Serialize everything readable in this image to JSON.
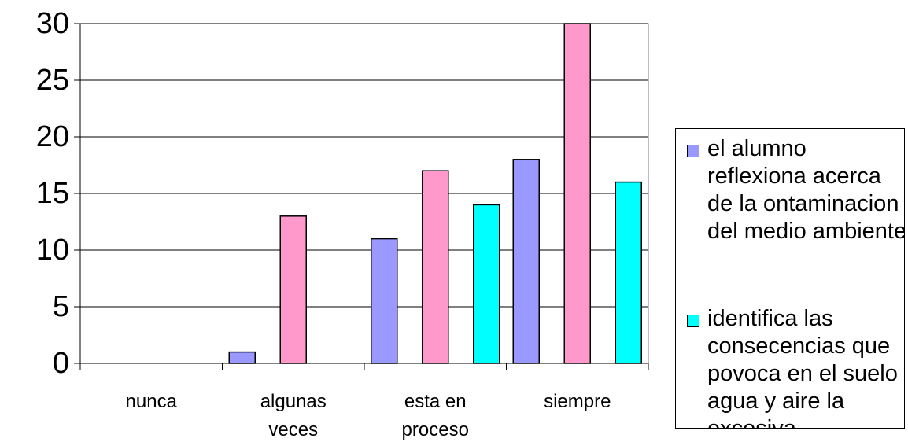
{
  "chart_data": {
    "type": "bar",
    "categories": [
      "nunca",
      "algunas\nveces",
      "esta en\nproceso",
      "siempre"
    ],
    "series": [
      {
        "name": "el alumno reflexiona acerca de la ontaminacion del medio ambiente",
        "color": "#9999ff",
        "values": [
          0,
          1,
          11,
          18
        ]
      },
      {
        "name": "",
        "color": "#ff99cc",
        "values": [
          0,
          13,
          17,
          30
        ]
      },
      {
        "name": "identifica las consecencias que povoca en el suelo agua y aire la excesiva",
        "color": "#00ffff",
        "values": [
          0,
          0,
          14,
          16
        ]
      }
    ],
    "ylim": [
      0,
      30
    ],
    "yticks": [
      0,
      5,
      10,
      15,
      20,
      25,
      30
    ],
    "grid": true,
    "legend_position": "right"
  },
  "legend": {
    "items": [
      {
        "label": "el alumno reflexiona acerca de la ontaminacion del medio ambiente",
        "color": "#9999ff"
      },
      {
        "label": "identifica las consecencias que povoca en el suelo agua y aire la excesiva",
        "color": "#00ffff"
      }
    ]
  }
}
